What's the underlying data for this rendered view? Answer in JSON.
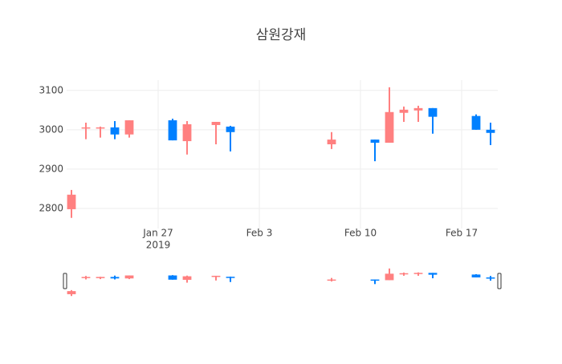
{
  "chart_data": {
    "type": "candlestick",
    "title": "삼원강재",
    "x": [
      "2019-01-21",
      "2019-01-22",
      "2019-01-23",
      "2019-01-24",
      "2019-01-25",
      "2019-01-28",
      "2019-01-29",
      "2019-01-31",
      "2019-02-01",
      "2019-02-08",
      "2019-02-11",
      "2019-02-12",
      "2019-02-13",
      "2019-02-14",
      "2019-02-15",
      "2019-02-18",
      "2019-02-19"
    ],
    "open": [
      2798,
      3003,
      3003,
      3006,
      2988,
      3024,
      2971,
      3012,
      3008,
      2963,
      2975,
      2967,
      3043,
      3049,
      3055,
      3035,
      3000
    ],
    "high": [
      2847,
      3018,
      3008,
      3022,
      3024,
      3028,
      3022,
      3020,
      3010,
      2994,
      2975,
      3108,
      3059,
      3061,
      3055,
      3039,
      3018
    ],
    "low": [
      2776,
      2976,
      2980,
      2976,
      2980,
      2973,
      2937,
      2963,
      2945,
      2951,
      2920,
      2967,
      3020,
      3020,
      2990,
      3000,
      2961
    ],
    "close": [
      2835,
      3006,
      3006,
      2988,
      3024,
      2973,
      3014,
      3020,
      2994,
      2975,
      2967,
      3045,
      3051,
      3055,
      3033,
      3000,
      2992
    ],
    "increasing_color": "#ff8080",
    "decreasing_color": "#0080ff",
    "xlim": [
      "2019-01-20T16:00Z",
      "2019-02-19T12:00Z"
    ],
    "xticks": [
      {
        "value": "2019-01-27",
        "label": "Jan 27"
      },
      {
        "value": "2019-02-03",
        "label": "Feb 3"
      },
      {
        "value": "2019-02-10",
        "label": "Feb 10"
      },
      {
        "value": "2019-02-17",
        "label": "Feb 17"
      }
    ],
    "xtick_year": "2019",
    "ylim": [
      2749,
      3126
    ],
    "yticks": [
      2800,
      2900,
      3000,
      3100
    ],
    "grid": true,
    "range_slider": true
  }
}
